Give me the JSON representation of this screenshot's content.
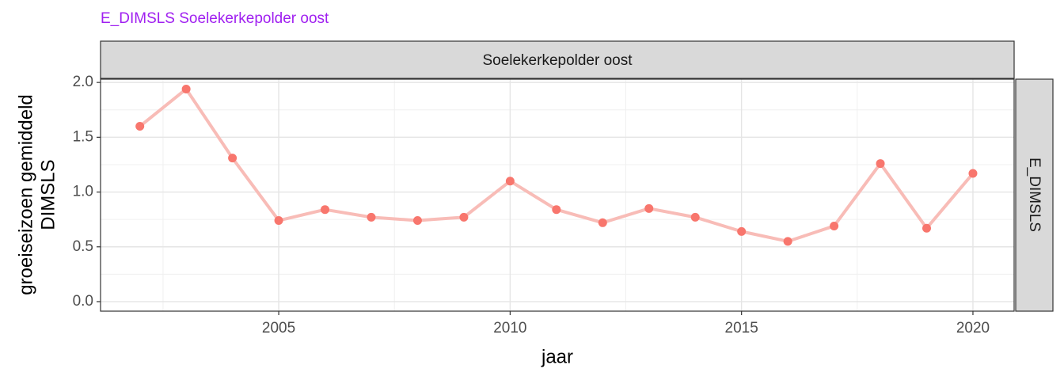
{
  "chart_data": {
    "type": "line",
    "title": "E_DIMSLS Soelekerkepolder oost",
    "facet_top": "Soelekerkepolder oost",
    "facet_right": "E_DIMSLS",
    "x_label": "jaar",
    "y_label": [
      "groeiseizoen gemiddeld",
      "DIMSLS"
    ],
    "x": [
      2002,
      2003,
      2004,
      2005,
      2006,
      2007,
      2008,
      2009,
      2010,
      2011,
      2012,
      2013,
      2014,
      2015,
      2016,
      2017,
      2018,
      2019,
      2020
    ],
    "series": [
      {
        "name": "E_DIMSLS",
        "color": "#f8766d",
        "line_color": "#f8bcb7",
        "values": [
          1.6,
          1.94,
          1.31,
          0.74,
          0.84,
          0.77,
          0.74,
          0.77,
          1.1,
          0.84,
          0.72,
          0.85,
          0.77,
          0.64,
          0.55,
          0.69,
          1.26,
          0.67,
          1.17
        ]
      }
    ],
    "xlim": [
      2001.15,
      2020.89
    ],
    "ylim": [
      -0.087,
      2.03
    ],
    "xticks": [
      2005,
      2010,
      2015,
      2020
    ],
    "yticks": [
      {
        "value": 0,
        "label": "0.0"
      },
      {
        "value": 0.5,
        "label": "0.5"
      },
      {
        "value": 1,
        "label": "1.0"
      },
      {
        "value": 1.5,
        "label": "1.5"
      },
      {
        "value": 2,
        "label": "2.0"
      }
    ],
    "xminorticks": [
      2002.5,
      2007.5,
      2012.5,
      2017.5
    ],
    "yminorticks": [
      0.25,
      0.75,
      1.25,
      1.75
    ],
    "grid": true
  }
}
